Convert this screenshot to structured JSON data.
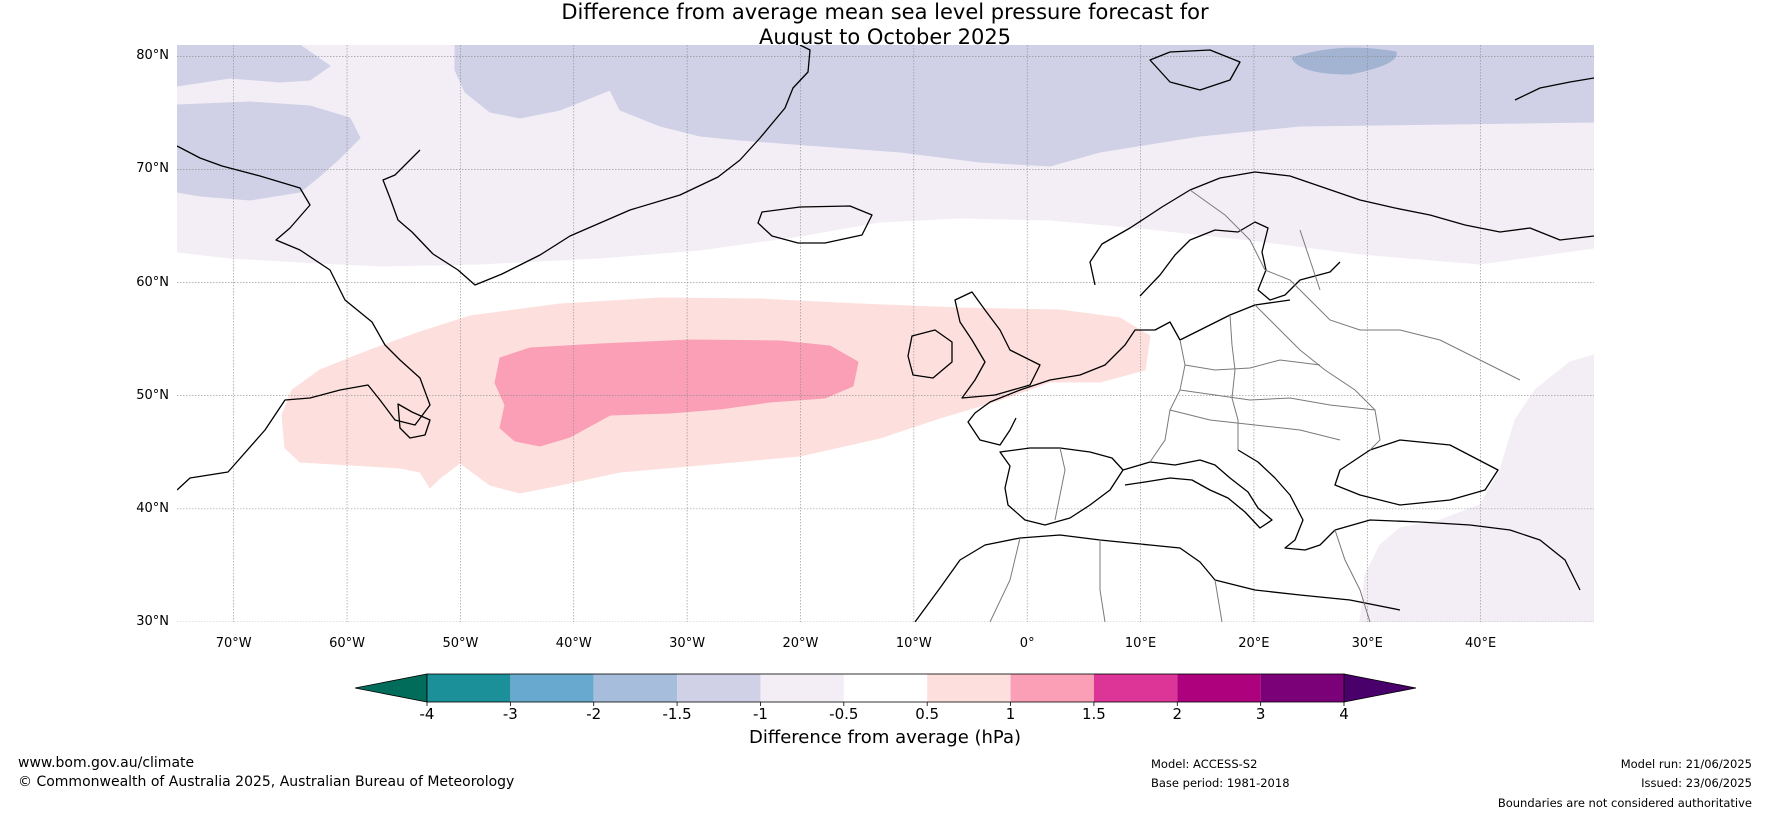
{
  "title": {
    "line1": "Difference from average mean sea level pressure forecast for",
    "line2": "August to October 2025"
  },
  "map": {
    "extent": {
      "lon": [
        -75,
        50
      ],
      "lat": [
        30,
        81
      ]
    },
    "lat_ticks": [
      {
        "value": 80,
        "label": "80°N"
      },
      {
        "value": 70,
        "label": "70°N"
      },
      {
        "value": 60,
        "label": "60°N"
      },
      {
        "value": 50,
        "label": "50°N"
      },
      {
        "value": 40,
        "label": "40°N"
      },
      {
        "value": 30,
        "label": "30°N"
      }
    ],
    "lon_ticks": [
      {
        "value": -70,
        "label": "70°W"
      },
      {
        "value": -60,
        "label": "60°W"
      },
      {
        "value": -50,
        "label": "50°W"
      },
      {
        "value": -40,
        "label": "40°W"
      },
      {
        "value": -30,
        "label": "30°W"
      },
      {
        "value": -20,
        "label": "20°W"
      },
      {
        "value": -10,
        "label": "10°W"
      },
      {
        "value": 0,
        "label": "0°"
      },
      {
        "value": 10,
        "label": "10°E"
      },
      {
        "value": 20,
        "label": "20°E"
      },
      {
        "value": 30,
        "label": "30°E"
      },
      {
        "value": 40,
        "label": "40°E"
      }
    ],
    "colors": {
      "lt_minus_2": "#a3b4d3",
      "minus_1_5_to_minus_1": "#d0d1e6",
      "minus_1_to_minus_0_5": "#f3eef6",
      "plus_0_5_to_1": "#fde0dd",
      "plus_1_to_1_5": "#fa9fb5",
      "coastline": "#000000",
      "border": "#7a7a7a",
      "grid": "#888888"
    }
  },
  "colorbar": {
    "ticks": [
      "-4",
      "-3",
      "-2",
      "-1.5",
      "-1",
      "-0.5",
      "0.5",
      "1",
      "1.5",
      "2",
      "3",
      "4"
    ],
    "colors": [
      "#1c9099",
      "#67a9cf",
      "#a6bddb",
      "#d0d1e6",
      "#f3eef6",
      "#ffffff",
      "#fde0dd",
      "#fa9fb5",
      "#dd3497",
      "#ae017e",
      "#7a0177"
    ],
    "under_color": "#016c59",
    "over_color": "#49006a",
    "label": "Difference from average (hPa)"
  },
  "footer": {
    "website": "www.bom.gov.au/climate",
    "copyright": "© Commonwealth of Australia 2025, Australian Bureau of Meteorology",
    "model": "Model: ACCESS-S2",
    "base_period": "Base period: 1981-2018",
    "model_run": "Model run: 21/06/2025",
    "issued": "Issued: 23/06/2025",
    "disclaimer": "Boundaries are not considered authoritative"
  }
}
